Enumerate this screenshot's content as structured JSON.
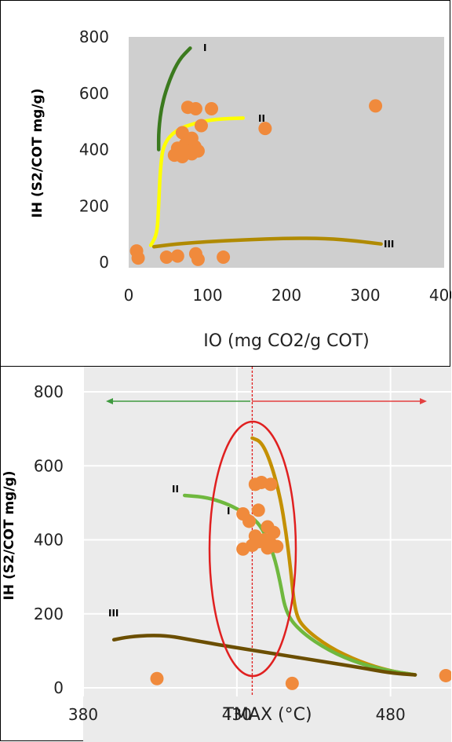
{
  "chart_data": [
    {
      "type": "scatter",
      "xlabel": "IO (mg CO2/g COT)",
      "ylabel": "IH (S2/COT mg/g)",
      "xlim": [
        0,
        400
      ],
      "ylim": [
        0,
        800
      ],
      "xticks": [
        "0",
        "100",
        "200",
        "300",
        "400"
      ],
      "yticks": [
        "0",
        "200",
        "400",
        "600",
        "800"
      ],
      "grid": false,
      "curve_labels": [
        "I",
        "II",
        "III"
      ],
      "curves": [
        {
          "label": "I",
          "color": "#3b7a1e",
          "points": [
            [
              38,
              400
            ],
            [
              38,
              470
            ],
            [
              42,
              560
            ],
            [
              52,
              650
            ],
            [
              64,
              720
            ],
            [
              78,
              760
            ]
          ]
        },
        {
          "label": "II",
          "color": "#ffff00",
          "points": [
            [
              28,
              60
            ],
            [
              36,
              100
            ],
            [
              38,
              200
            ],
            [
              40,
              330
            ],
            [
              44,
              420
            ],
            [
              60,
              470
            ],
            [
              85,
              495
            ],
            [
              110,
              508
            ],
            [
              145,
              512
            ]
          ]
        },
        {
          "label": "III",
          "color": "#b08a00",
          "points": [
            [
              32,
              55
            ],
            [
              60,
              65
            ],
            [
              100,
              73
            ],
            [
              150,
              80
            ],
            [
              200,
              85
            ],
            [
              250,
              85
            ],
            [
              290,
              75
            ],
            [
              320,
              65
            ]
          ]
        }
      ],
      "points": [
        {
          "x": 10,
          "y": 40
        },
        {
          "x": 12,
          "y": 15
        },
        {
          "x": 48,
          "y": 18
        },
        {
          "x": 62,
          "y": 22
        },
        {
          "x": 85,
          "y": 30
        },
        {
          "x": 88,
          "y": 10
        },
        {
          "x": 120,
          "y": 18
        },
        {
          "x": 75,
          "y": 550
        },
        {
          "x": 85,
          "y": 545
        },
        {
          "x": 105,
          "y": 545
        },
        {
          "x": 92,
          "y": 485
        },
        {
          "x": 68,
          "y": 460
        },
        {
          "x": 80,
          "y": 440
        },
        {
          "x": 72,
          "y": 420
        },
        {
          "x": 84,
          "y": 410
        },
        {
          "x": 62,
          "y": 405
        },
        {
          "x": 76,
          "y": 395
        },
        {
          "x": 88,
          "y": 395
        },
        {
          "x": 58,
          "y": 380
        },
        {
          "x": 68,
          "y": 375
        },
        {
          "x": 80,
          "y": 385
        },
        {
          "x": 173,
          "y": 475
        },
        {
          "x": 313,
          "y": 555
        }
      ],
      "point_color": "#f08a3c",
      "plot_bg": "#cfcfcf"
    },
    {
      "type": "scatter",
      "xlabel": "TMAX (°C)",
      "ylabel": "IH (S2/COT mg/g)",
      "xlim": [
        380,
        500
      ],
      "ylim": [
        0,
        800
      ],
      "xticks": [
        "380",
        "430",
        "480"
      ],
      "yticks": [
        "0",
        "200",
        "400",
        "600",
        "800"
      ],
      "grid": true,
      "curve_labels": [
        "I",
        "II",
        "III"
      ],
      "reference_line_x": 435,
      "curves": [
        {
          "label": "I",
          "color": "#c49000",
          "points": [
            [
              435,
              675
            ],
            [
              438,
              665
            ],
            [
              441,
              610
            ],
            [
              444,
              520
            ],
            [
              446,
              420
            ],
            [
              447.5,
              320
            ],
            [
              449,
              200
            ],
            [
              452,
              160
            ],
            [
              460,
              110
            ],
            [
              470,
              70
            ],
            [
              480,
              45
            ],
            [
              488,
              35
            ]
          ]
        },
        {
          "label": "II",
          "color": "#6fb83e",
          "points": [
            [
              413,
              520
            ],
            [
              420,
              515
            ],
            [
              426,
              500
            ],
            [
              431,
              480
            ],
            [
              436,
              455
            ],
            [
              439,
              420
            ],
            [
              442,
              360
            ],
            [
              444,
              290
            ],
            [
              446,
              200
            ],
            [
              451,
              150
            ],
            [
              460,
              100
            ],
            [
              470,
              65
            ],
            [
              480,
              45
            ],
            [
              488,
              35
            ]
          ]
        },
        {
          "label": "III",
          "color": "#6b4e00",
          "points": [
            [
              390,
              130
            ],
            [
              395,
              138
            ],
            [
              402,
              142
            ],
            [
              408,
              140
            ],
            [
              415,
              130
            ],
            [
              425,
              115
            ],
            [
              440,
              95
            ],
            [
              455,
              75
            ],
            [
              470,
              55
            ],
            [
              480,
              40
            ],
            [
              488,
              35
            ]
          ]
        }
      ],
      "points": [
        {
          "x": 436,
          "y": 550
        },
        {
          "x": 438,
          "y": 555
        },
        {
          "x": 441,
          "y": 550
        },
        {
          "x": 437,
          "y": 480
        },
        {
          "x": 432,
          "y": 470
        },
        {
          "x": 434,
          "y": 450
        },
        {
          "x": 440,
          "y": 435
        },
        {
          "x": 442,
          "y": 420
        },
        {
          "x": 436,
          "y": 410
        },
        {
          "x": 439,
          "y": 400
        },
        {
          "x": 441,
          "y": 390
        },
        {
          "x": 432,
          "y": 375
        },
        {
          "x": 435,
          "y": 385
        },
        {
          "x": 440,
          "y": 378
        },
        {
          "x": 443,
          "y": 382
        },
        {
          "x": 437,
          "y": 395
        },
        {
          "x": 404,
          "y": 25
        },
        {
          "x": 448,
          "y": 12
        },
        {
          "x": 498,
          "y": 33
        }
      ],
      "point_color": "#f08a3c",
      "plot_bg": "#ebebeb"
    }
  ]
}
